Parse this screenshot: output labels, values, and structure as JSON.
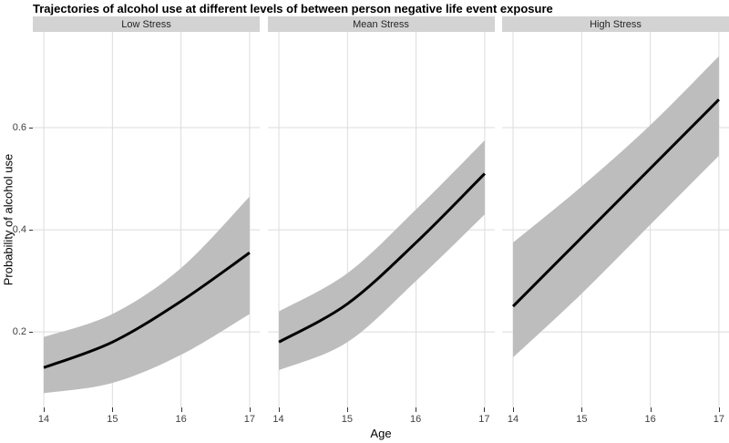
{
  "title": "Trajectories of alcohol use at different levels of between person negative life event exposure",
  "chart_data": {
    "type": "line",
    "title": "Trajectories of alcohol use at different levels of between person negative life event exposure",
    "xlabel": "Age",
    "ylabel": "Probability of alcohol use",
    "x": [
      14,
      15,
      16,
      17
    ],
    "xtick_labels": [
      "14",
      "15",
      "16",
      "17"
    ],
    "ytick_values": [
      0.2,
      0.4,
      0.6
    ],
    "ytick_labels": [
      "0.2",
      "0.4",
      "0.6"
    ],
    "xlim": [
      13.84,
      17.147
    ],
    "ylim": [
      0.052,
      0.7875
    ],
    "grid": "major",
    "legend": "none",
    "series_style": "black mean trajectory line with gray confidence ribbon per facet",
    "facets": [
      {
        "label": "Low Stress",
        "line": [
          0.13,
          0.18,
          0.26,
          0.355
        ],
        "upper": [
          0.19,
          0.235,
          0.325,
          0.465
        ],
        "lower": [
          0.08,
          0.1,
          0.155,
          0.235
        ]
      },
      {
        "label": "Mean Stress",
        "line": [
          0.18,
          0.255,
          0.375,
          0.51
        ],
        "upper": [
          0.24,
          0.315,
          0.44,
          0.575
        ],
        "lower": [
          0.125,
          0.18,
          0.3,
          0.43
        ]
      },
      {
        "label": "High Stress",
        "line": [
          0.25,
          0.385,
          0.52,
          0.655
        ],
        "upper": [
          0.375,
          0.485,
          0.605,
          0.74
        ],
        "lower": [
          0.15,
          0.275,
          0.41,
          0.545
        ]
      }
    ]
  },
  "colors": {
    "ribbon": "#bdbdbd",
    "trend_line": "#000000",
    "strip_background": "#d3d3d3",
    "gridline": "#dcdcdc",
    "axis_text": "#404040",
    "tick_mark": "#333333",
    "panel_background": "#ffffff"
  }
}
